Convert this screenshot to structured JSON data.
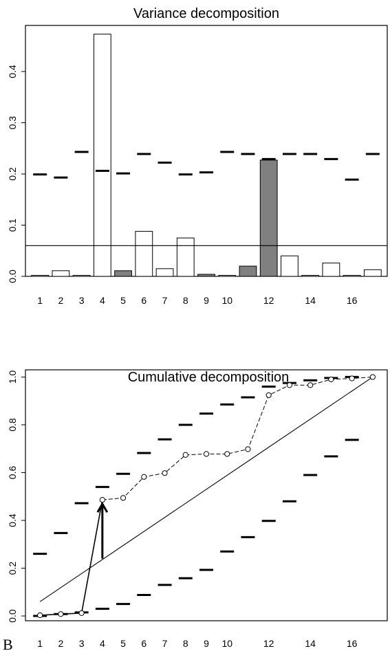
{
  "figure_label": "B",
  "chart_data": [
    {
      "type": "bar",
      "title": "Variance decomposition",
      "xlabel": "",
      "ylabel": "",
      "categories": [
        1,
        2,
        3,
        4,
        5,
        6,
        7,
        8,
        9,
        10,
        11,
        12,
        13,
        14,
        15,
        16,
        17
      ],
      "x_tick_labels": [
        "1",
        "2",
        "3",
        "4",
        "5",
        "6",
        "7",
        "8",
        "9",
        "10",
        "12",
        "14",
        "16"
      ],
      "x_tick_positions": [
        1,
        2,
        3,
        4,
        5,
        6,
        7,
        8,
        9,
        10,
        12,
        14,
        16
      ],
      "y_tick_labels": [
        "0.0",
        "0.1",
        "0.2",
        "0.3",
        "0.4"
      ],
      "y_ticks": [
        0.0,
        0.1,
        0.2,
        0.3,
        0.4
      ],
      "ylim": [
        0,
        0.49
      ],
      "xlim": [
        0.3,
        17.7
      ],
      "values": [
        0.002,
        0.011,
        0.002,
        0.473,
        0.011,
        0.088,
        0.015,
        0.075,
        0.004,
        0.002,
        0.02,
        0.227,
        0.04,
        0.002,
        0.026,
        0.002,
        0.013
      ],
      "bar_fill": [
        "white",
        "white",
        "white",
        "white",
        "gray",
        "white",
        "white",
        "white",
        "gray",
        "white",
        "gray",
        "gray",
        "white",
        "white",
        "white",
        "white",
        "white"
      ],
      "upper_dashes": [
        0.199,
        0.193,
        0.243,
        0.206,
        0.201,
        0.239,
        0.222,
        0.199,
        0.203,
        0.243,
        0.239,
        0.229,
        0.239,
        0.239,
        0.229,
        0.189,
        0.239
      ],
      "reference_line": 0.06,
      "colors": {
        "filled": "#808080",
        "empty": "#ffffff",
        "stroke": "#000000"
      }
    },
    {
      "type": "line",
      "title": "Cumulative decomposition",
      "xlabel": "",
      "ylabel": "",
      "x": [
        1,
        2,
        3,
        4,
        5,
        6,
        7,
        8,
        9,
        10,
        11,
        12,
        13,
        14,
        15,
        16,
        17
      ],
      "x_tick_labels": [
        "1",
        "2",
        "3",
        "4",
        "5",
        "6",
        "7",
        "8",
        "9",
        "10",
        "12",
        "14",
        "16"
      ],
      "x_tick_positions": [
        1,
        2,
        3,
        4,
        5,
        6,
        7,
        8,
        9,
        10,
        12,
        14,
        16
      ],
      "y_tick_labels": [
        "0.0",
        "0.2",
        "0.4",
        "0.6",
        "0.8",
        "1.0"
      ],
      "y_ticks": [
        0.0,
        0.2,
        0.4,
        0.6,
        0.8,
        1.0
      ],
      "ylim": [
        -0.02,
        1.03
      ],
      "xlim": [
        0.3,
        17.7
      ],
      "cumulative": [
        0.003,
        0.008,
        0.012,
        0.486,
        0.494,
        0.582,
        0.598,
        0.674,
        0.678,
        0.678,
        0.698,
        0.924,
        0.966,
        0.966,
        0.99,
        0.994,
        1.0
      ],
      "upper_dashes": [
        0.26,
        0.347,
        0.472,
        0.54,
        0.595,
        0.682,
        0.739,
        0.8,
        0.847,
        0.885,
        0.915,
        0.96,
        0.975,
        0.986,
        0.996,
        1.0,
        null
      ],
      "lower_dashes": [
        0.0,
        0.008,
        0.015,
        0.03,
        0.05,
        0.088,
        0.13,
        0.158,
        0.193,
        0.27,
        0.33,
        0.398,
        0.48,
        0.59,
        0.668,
        0.737,
        null
      ],
      "diagonal": {
        "from": [
          1,
          0.06
        ],
        "to": [
          17,
          1.0
        ]
      },
      "arrow": {
        "x": 4,
        "from": 0.24,
        "to": 0.486
      }
    }
  ]
}
